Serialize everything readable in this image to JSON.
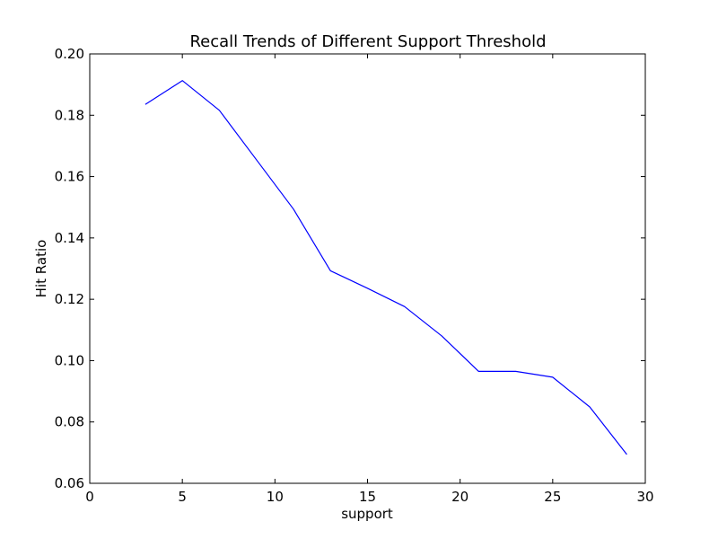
{
  "chart_data": {
    "type": "line",
    "title": "Recall Trends of Different Support Threshold",
    "xlabel": "support",
    "ylabel": "Hit Ratio",
    "xlim": [
      0,
      30
    ],
    "ylim": [
      0.06,
      0.2
    ],
    "xticks": [
      0,
      5,
      10,
      15,
      20,
      25,
      30
    ],
    "xtick_labels": [
      "0",
      "5",
      "10",
      "15",
      "20",
      "25",
      "30"
    ],
    "yticks": [
      0.06,
      0.08,
      0.1,
      0.12,
      0.14,
      0.16,
      0.18,
      0.2
    ],
    "ytick_labels": [
      "0.06",
      "0.08",
      "0.10",
      "0.12",
      "0.14",
      "0.16",
      "0.18",
      "0.20"
    ],
    "grid": false,
    "legend": "none",
    "line_color": "#0000ff",
    "series": [
      {
        "x": [
          3,
          5,
          7,
          9,
          11,
          13,
          15,
          17,
          19,
          21,
          23,
          25,
          27,
          29
        ],
        "values": [
          0.1835,
          0.1913,
          0.1816,
          0.1655,
          0.1494,
          0.1293,
          0.1236,
          0.1176,
          0.1081,
          0.0965,
          0.0965,
          0.0946,
          0.0849,
          0.0694
        ]
      }
    ]
  }
}
